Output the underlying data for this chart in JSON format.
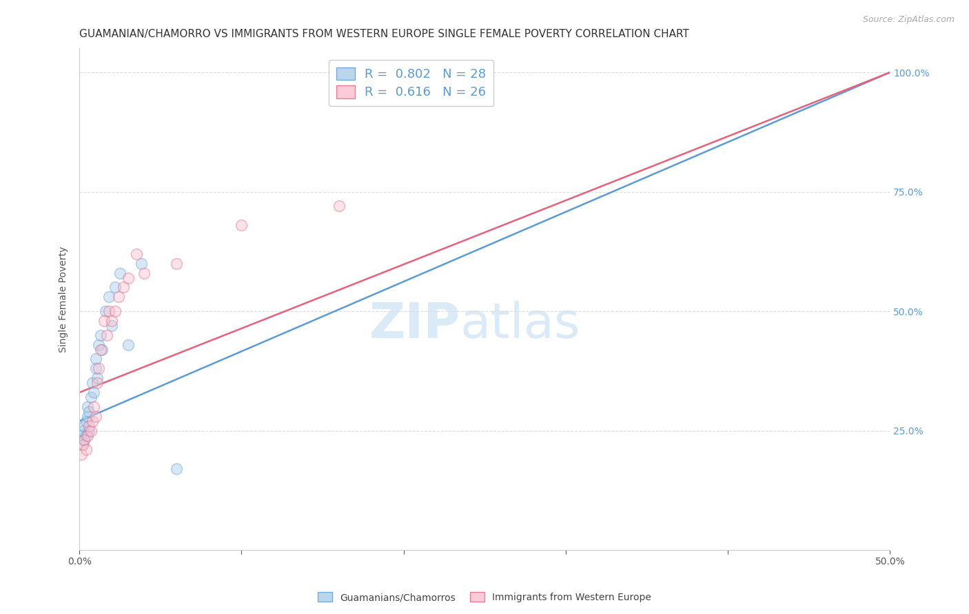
{
  "title": "GUAMANIAN/CHAMORRO VS IMMIGRANTS FROM WESTERN EUROPE SINGLE FEMALE POVERTY CORRELATION CHART",
  "source": "Source: ZipAtlas.com",
  "ylabel": "Single Female Poverty",
  "watermark_zip": "ZIP",
  "watermark_atlas": "atlas",
  "xlim": [
    0.0,
    0.5
  ],
  "ylim": [
    0.0,
    1.05
  ],
  "blue_R": 0.802,
  "blue_N": 28,
  "pink_R": 0.616,
  "pink_N": 26,
  "legend_label_blue": "Guamanians/Chamorros",
  "legend_label_pink": "Immigrants from Western Europe",
  "blue_color": "#a8cce8",
  "pink_color": "#f9c0d0",
  "line_blue_color": "#5b9bd5",
  "line_pink_color": "#e8607a",
  "blue_points_x": [
    0.001,
    0.002,
    0.002,
    0.003,
    0.003,
    0.004,
    0.004,
    0.005,
    0.005,
    0.006,
    0.006,
    0.007,
    0.008,
    0.009,
    0.01,
    0.01,
    0.011,
    0.012,
    0.013,
    0.014,
    0.016,
    0.018,
    0.02,
    0.022,
    0.025,
    0.03,
    0.038,
    0.06
  ],
  "blue_points_y": [
    0.24,
    0.22,
    0.25,
    0.23,
    0.26,
    0.27,
    0.24,
    0.28,
    0.3,
    0.25,
    0.29,
    0.32,
    0.35,
    0.33,
    0.38,
    0.4,
    0.36,
    0.43,
    0.45,
    0.42,
    0.5,
    0.53,
    0.47,
    0.55,
    0.58,
    0.43,
    0.6,
    0.17
  ],
  "pink_points_x": [
    0.001,
    0.002,
    0.003,
    0.004,
    0.005,
    0.006,
    0.007,
    0.008,
    0.009,
    0.01,
    0.011,
    0.012,
    0.013,
    0.015,
    0.017,
    0.018,
    0.02,
    0.022,
    0.024,
    0.027,
    0.03,
    0.035,
    0.04,
    0.06,
    0.1,
    0.16
  ],
  "pink_points_y": [
    0.2,
    0.22,
    0.23,
    0.21,
    0.24,
    0.26,
    0.25,
    0.27,
    0.3,
    0.28,
    0.35,
    0.38,
    0.42,
    0.48,
    0.45,
    0.5,
    0.48,
    0.5,
    0.53,
    0.55,
    0.57,
    0.62,
    0.58,
    0.6,
    0.68,
    0.72
  ],
  "blue_line_x0": 0.0,
  "blue_line_y0": 0.27,
  "blue_line_x1": 0.5,
  "blue_line_y1": 1.0,
  "pink_line_x0": 0.0,
  "pink_line_y0": 0.33,
  "pink_line_x1": 0.5,
  "pink_line_y1": 1.0,
  "background_color": "#ffffff",
  "grid_color": "#dddddd",
  "title_fontsize": 11,
  "label_fontsize": 10,
  "tick_fontsize": 10,
  "legend_fontsize": 13,
  "watermark_fontsize_zip": 52,
  "watermark_fontsize_atlas": 52,
  "watermark_color": "#daeaf6",
  "right_tick_color": "#5b9bd5",
  "marker_size": 130,
  "marker_alpha": 0.45,
  "line_width": 1.8
}
